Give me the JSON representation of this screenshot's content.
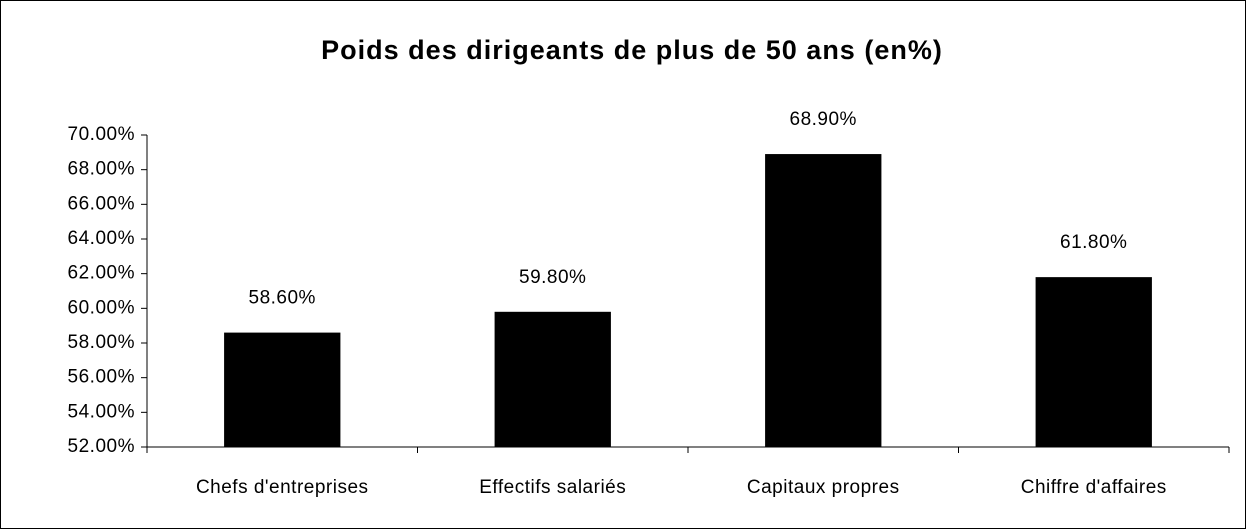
{
  "chart_data": {
    "type": "bar",
    "title": "Poids des dirigeants de plus de 50 ans (en%)",
    "categories": [
      "Chefs d'entreprises",
      "Effectifs salariés",
      "Capitaux propres",
      "Chiffre d'affaires"
    ],
    "values": [
      58.6,
      59.8,
      68.9,
      61.8
    ],
    "value_labels": [
      "58.60%",
      "59.80%",
      "68.90%",
      "61.80%"
    ],
    "color": "#000000",
    "ylim": [
      52,
      70
    ],
    "yticks": [
      {
        "value": 52,
        "label": "52.00%"
      },
      {
        "value": 54,
        "label": "54.00%"
      },
      {
        "value": 56,
        "label": "56.00%"
      },
      {
        "value": 58,
        "label": "58.00%"
      },
      {
        "value": 60,
        "label": "60.00%"
      },
      {
        "value": 62,
        "label": "62.00%"
      },
      {
        "value": 64,
        "label": "64.00%"
      },
      {
        "value": 66,
        "label": "66.00%"
      },
      {
        "value": 68,
        "label": "68.00%"
      },
      {
        "value": 70,
        "label": "70.00%"
      }
    ],
    "grid": false
  }
}
